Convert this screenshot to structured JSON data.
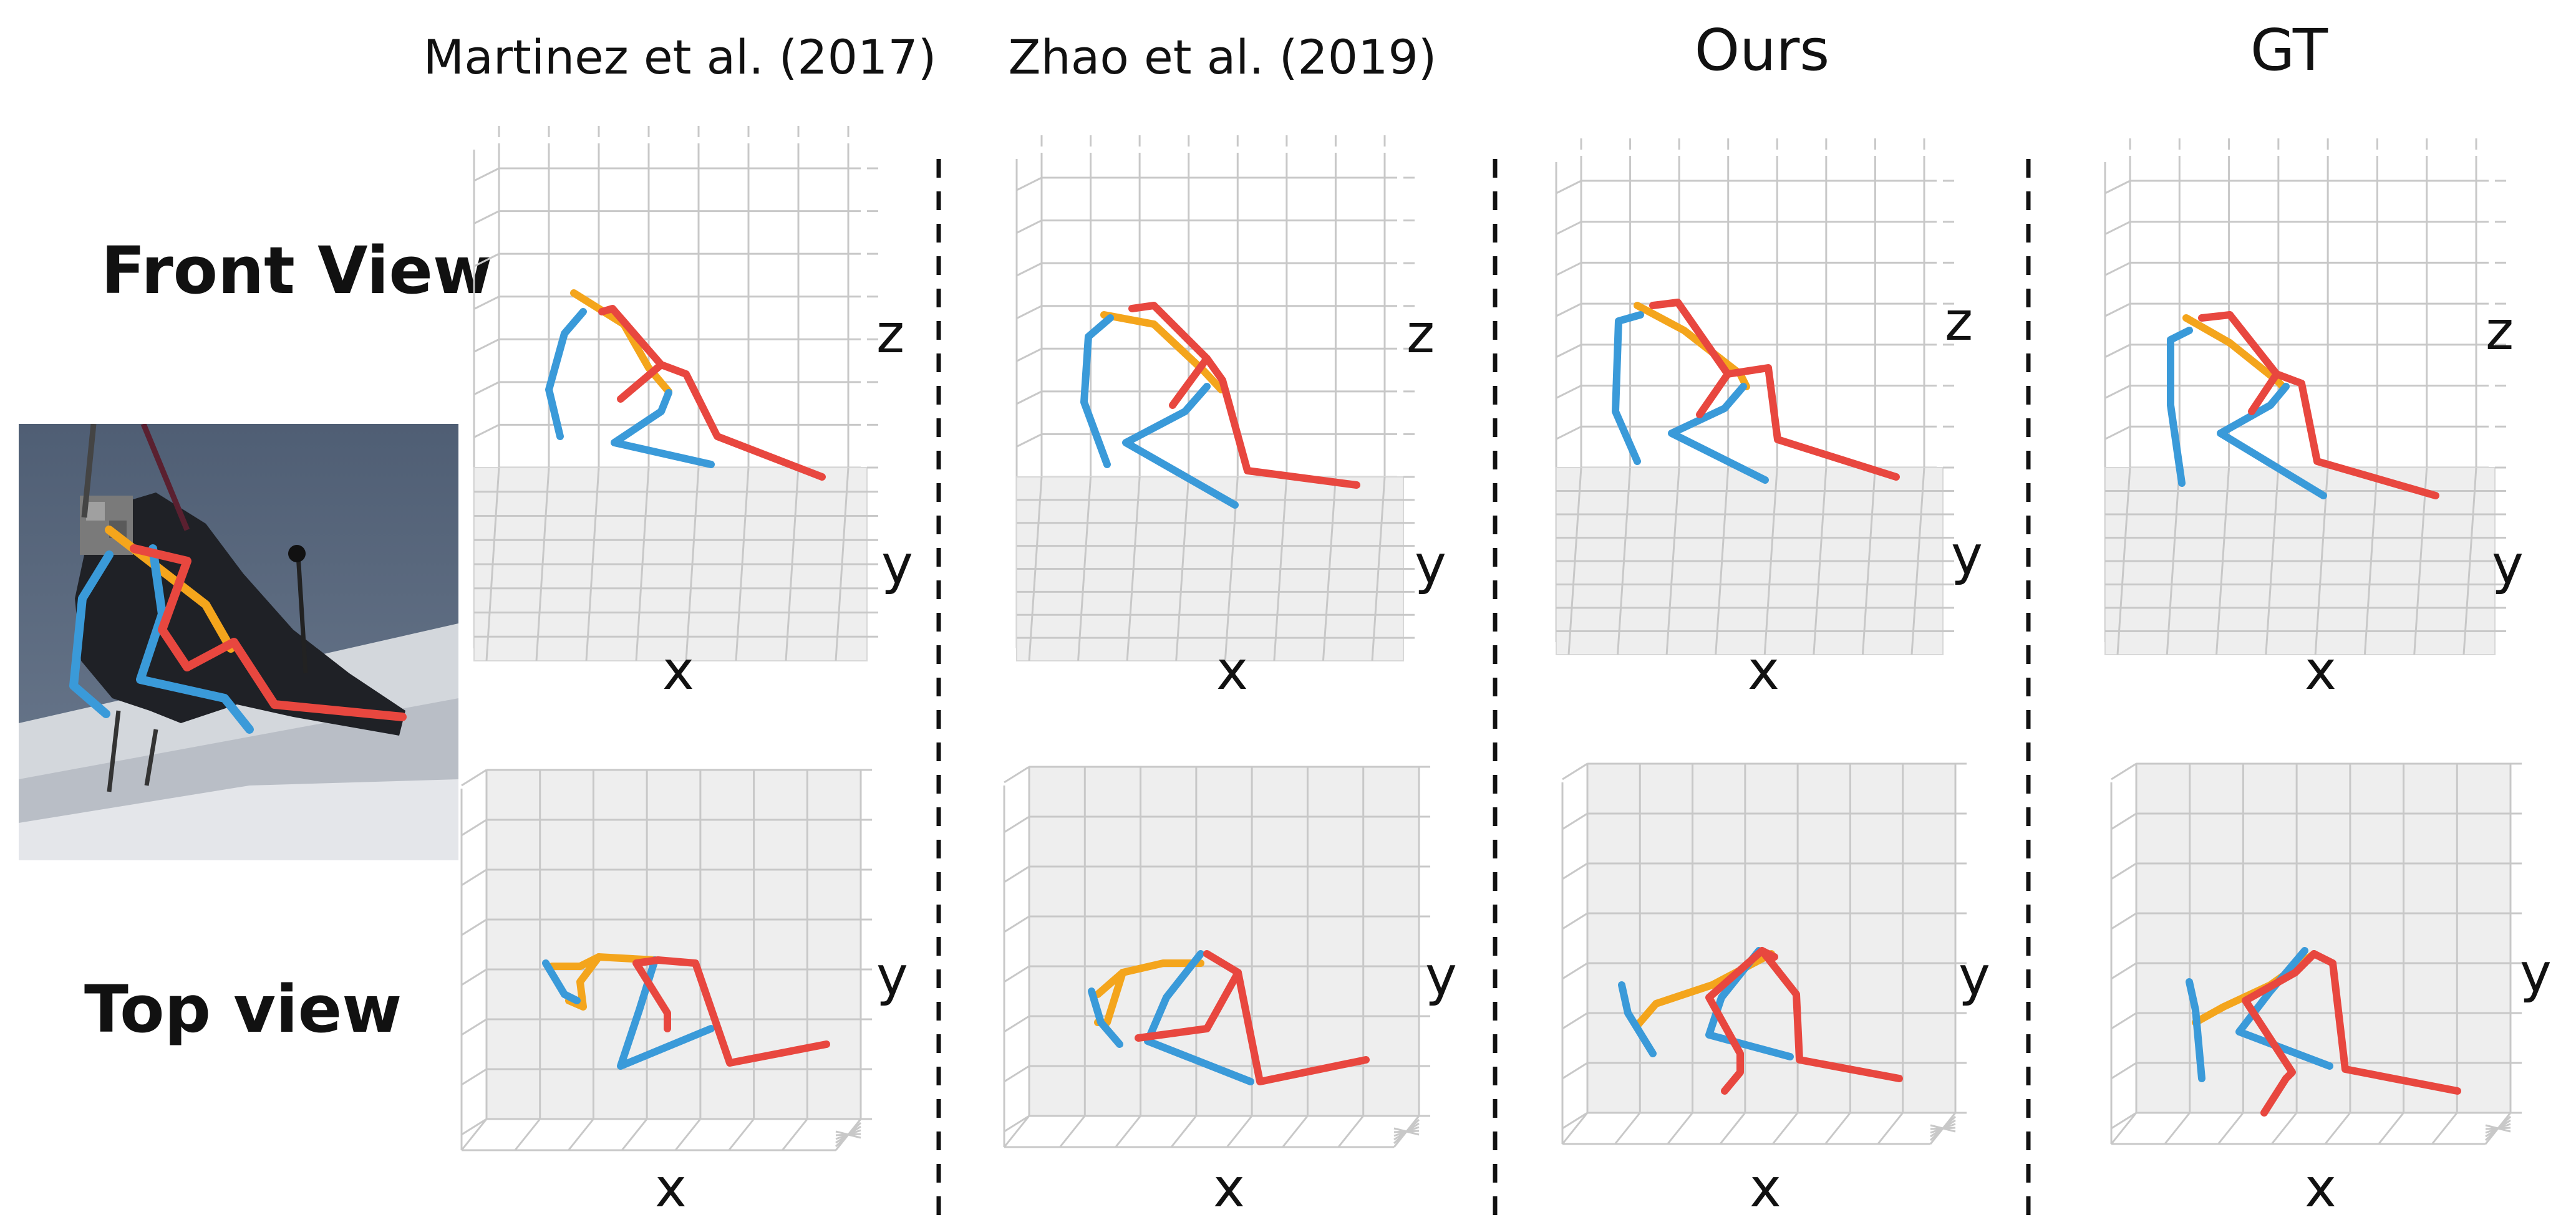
{
  "columns": [
    {
      "id": "martinez",
      "title": "Martinez et al. (2017)"
    },
    {
      "id": "zhao",
      "title": "Zhao et al. (2019)"
    },
    {
      "id": "ours",
      "title": "Ours"
    },
    {
      "id": "gt",
      "title": "GT"
    }
  ],
  "rows": [
    {
      "id": "front",
      "label": "Front View",
      "axes": [
        "z",
        "y",
        "x"
      ]
    },
    {
      "id": "top",
      "label": "Top view",
      "axes": [
        "y",
        "x"
      ]
    }
  ],
  "colors": {
    "left_limb": "#3a9ad9",
    "right_limb": "#e8473f",
    "spine": "#f4a51c",
    "floor": "#eeeeee",
    "grid": "#c8c8c8",
    "divider": "#111111"
  },
  "input_image": {
    "subject": "skier",
    "background_sky": "#5c6c82",
    "snow": "#d7dbe0"
  }
}
